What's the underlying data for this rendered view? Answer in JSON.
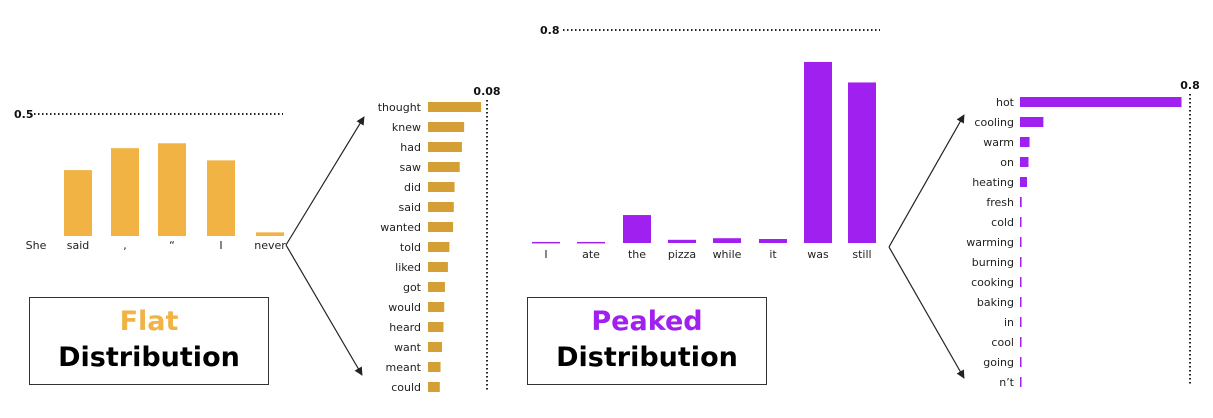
{
  "colors": {
    "flat": "#F0B344",
    "flat_rank": "#D4A035",
    "peaked": "#A021EF",
    "axis": "#222222"
  },
  "boxes": {
    "flat": {
      "word1": "Flat",
      "word2": "Distribution"
    },
    "peaked": {
      "word1": "Peaked",
      "word2": "Distribution"
    }
  },
  "chart_data": [
    {
      "type": "bar",
      "panel": "flat-context",
      "categories": [
        "She",
        "said",
        ",",
        "“",
        "I",
        "never"
      ],
      "values": [
        null,
        0.27,
        0.36,
        0.38,
        0.31,
        0.015
      ],
      "max_label": "0.5",
      "ylim": [
        0,
        0.5
      ]
    },
    {
      "type": "bar",
      "orientation": "horizontal",
      "panel": "flat-next-word",
      "categories": [
        "thought",
        "knew",
        "had",
        "saw",
        "did",
        "said",
        "wanted",
        "told",
        "liked",
        "got",
        "would",
        "heard",
        "want",
        "meant",
        "could"
      ],
      "values": [
        0.072,
        0.049,
        0.046,
        0.043,
        0.036,
        0.035,
        0.034,
        0.029,
        0.027,
        0.023,
        0.022,
        0.021,
        0.019,
        0.017,
        0.016
      ],
      "max_label": "0.08",
      "xlim": [
        0,
        0.08
      ]
    },
    {
      "type": "bar",
      "panel": "peaked-context",
      "categories": [
        "I",
        "ate",
        "the",
        "pizza",
        "while",
        "it",
        "was",
        "still"
      ],
      "values": [
        0.004,
        0.004,
        0.105,
        0.012,
        0.018,
        0.015,
        0.68,
        0.603
      ],
      "max_label": "0.8",
      "ylim": [
        0,
        0.8
      ]
    },
    {
      "type": "bar",
      "orientation": "horizontal",
      "panel": "peaked-next-word",
      "categories": [
        "hot",
        "cooling",
        "warm",
        "on",
        "heating",
        "fresh",
        "cold",
        "warming",
        "burning",
        "cooking",
        "baking",
        "in",
        "cool",
        "going",
        "n’t"
      ],
      "values": [
        0.76,
        0.11,
        0.045,
        0.04,
        0.033,
        0.008,
        0.006,
        0.004,
        0.003,
        0.003,
        0.003,
        0.003,
        0.003,
        0.003,
        0.003
      ],
      "max_label": "0.8",
      "xlim": [
        0,
        0.8
      ]
    }
  ]
}
